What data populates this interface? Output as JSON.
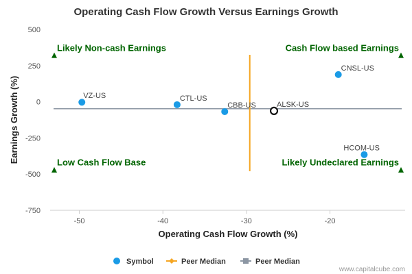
{
  "chart_data": {
    "type": "scatter",
    "title": "Operating Cash Flow Growth Versus Earnings Growth",
    "xlabel": "Operating Cash Flow Growth (%)",
    "ylabel": "Earnings Growth (%)",
    "xlim": [
      -53.5,
      -11
    ],
    "ylim": [
      -750,
      500
    ],
    "xticks": [
      {
        "value": -50,
        "label": "-50"
      },
      {
        "value": -40,
        "label": "-40"
      },
      {
        "value": -30,
        "label": "-30"
      },
      {
        "value": -20,
        "label": "-20"
      }
    ],
    "yticks": [
      {
        "value": 500,
        "label": "500"
      },
      {
        "value": 250,
        "label": "250"
      },
      {
        "value": 0,
        "label": "0"
      },
      {
        "value": -250,
        "label": "-250"
      },
      {
        "value": -500,
        "label": "-500"
      },
      {
        "value": -750,
        "label": "-750"
      }
    ],
    "points": [
      {
        "label": "VZ-US",
        "x": -49.7,
        "y": -3,
        "highlight": false
      },
      {
        "label": "CTL-US",
        "x": -38.3,
        "y": -20,
        "highlight": false
      },
      {
        "label": "CBB-US",
        "x": -32.6,
        "y": -68,
        "highlight": false
      },
      {
        "label": "ALSK-US",
        "x": -26.7,
        "y": -63,
        "highlight": true
      },
      {
        "label": "CNSL-US",
        "x": -19.0,
        "y": 188,
        "highlight": false
      },
      {
        "label": "HCOM-US",
        "x": -15.9,
        "y": -365,
        "highlight": false
      }
    ],
    "peer_median_x": -29.6,
    "peer_median_y": -48,
    "peer_median_x_extent": [
      -480,
      325
    ],
    "quadrant_labels": [
      {
        "text": "Likely Non-cash Earnings",
        "position": "top-left"
      },
      {
        "text": "Cash Flow based Earnings",
        "position": "top-right"
      },
      {
        "text": "Low Cash Flow Base",
        "position": "bottom-left"
      },
      {
        "text": "Likely Undeclared Earnings",
        "position": "bottom-right"
      }
    ],
    "legend": [
      {
        "label": "Symbol",
        "symbol": "circle",
        "color": "#1a9be6"
      },
      {
        "label": "Peer Median",
        "symbol": "diamond-line",
        "color": "#f5a623"
      },
      {
        "label": "Peer Median",
        "symbol": "square-line",
        "color": "#8c96a3"
      }
    ],
    "legend_position": "bottom-center",
    "grid": false,
    "colors": {
      "point": "#1a9be6",
      "highlight_stroke": "#111111",
      "median_v": "#f5a623",
      "median_h": "#8c96a3",
      "quadrant_text": "#006400",
      "marker": "#006400"
    }
  },
  "credit": "www.capitalcube.com"
}
